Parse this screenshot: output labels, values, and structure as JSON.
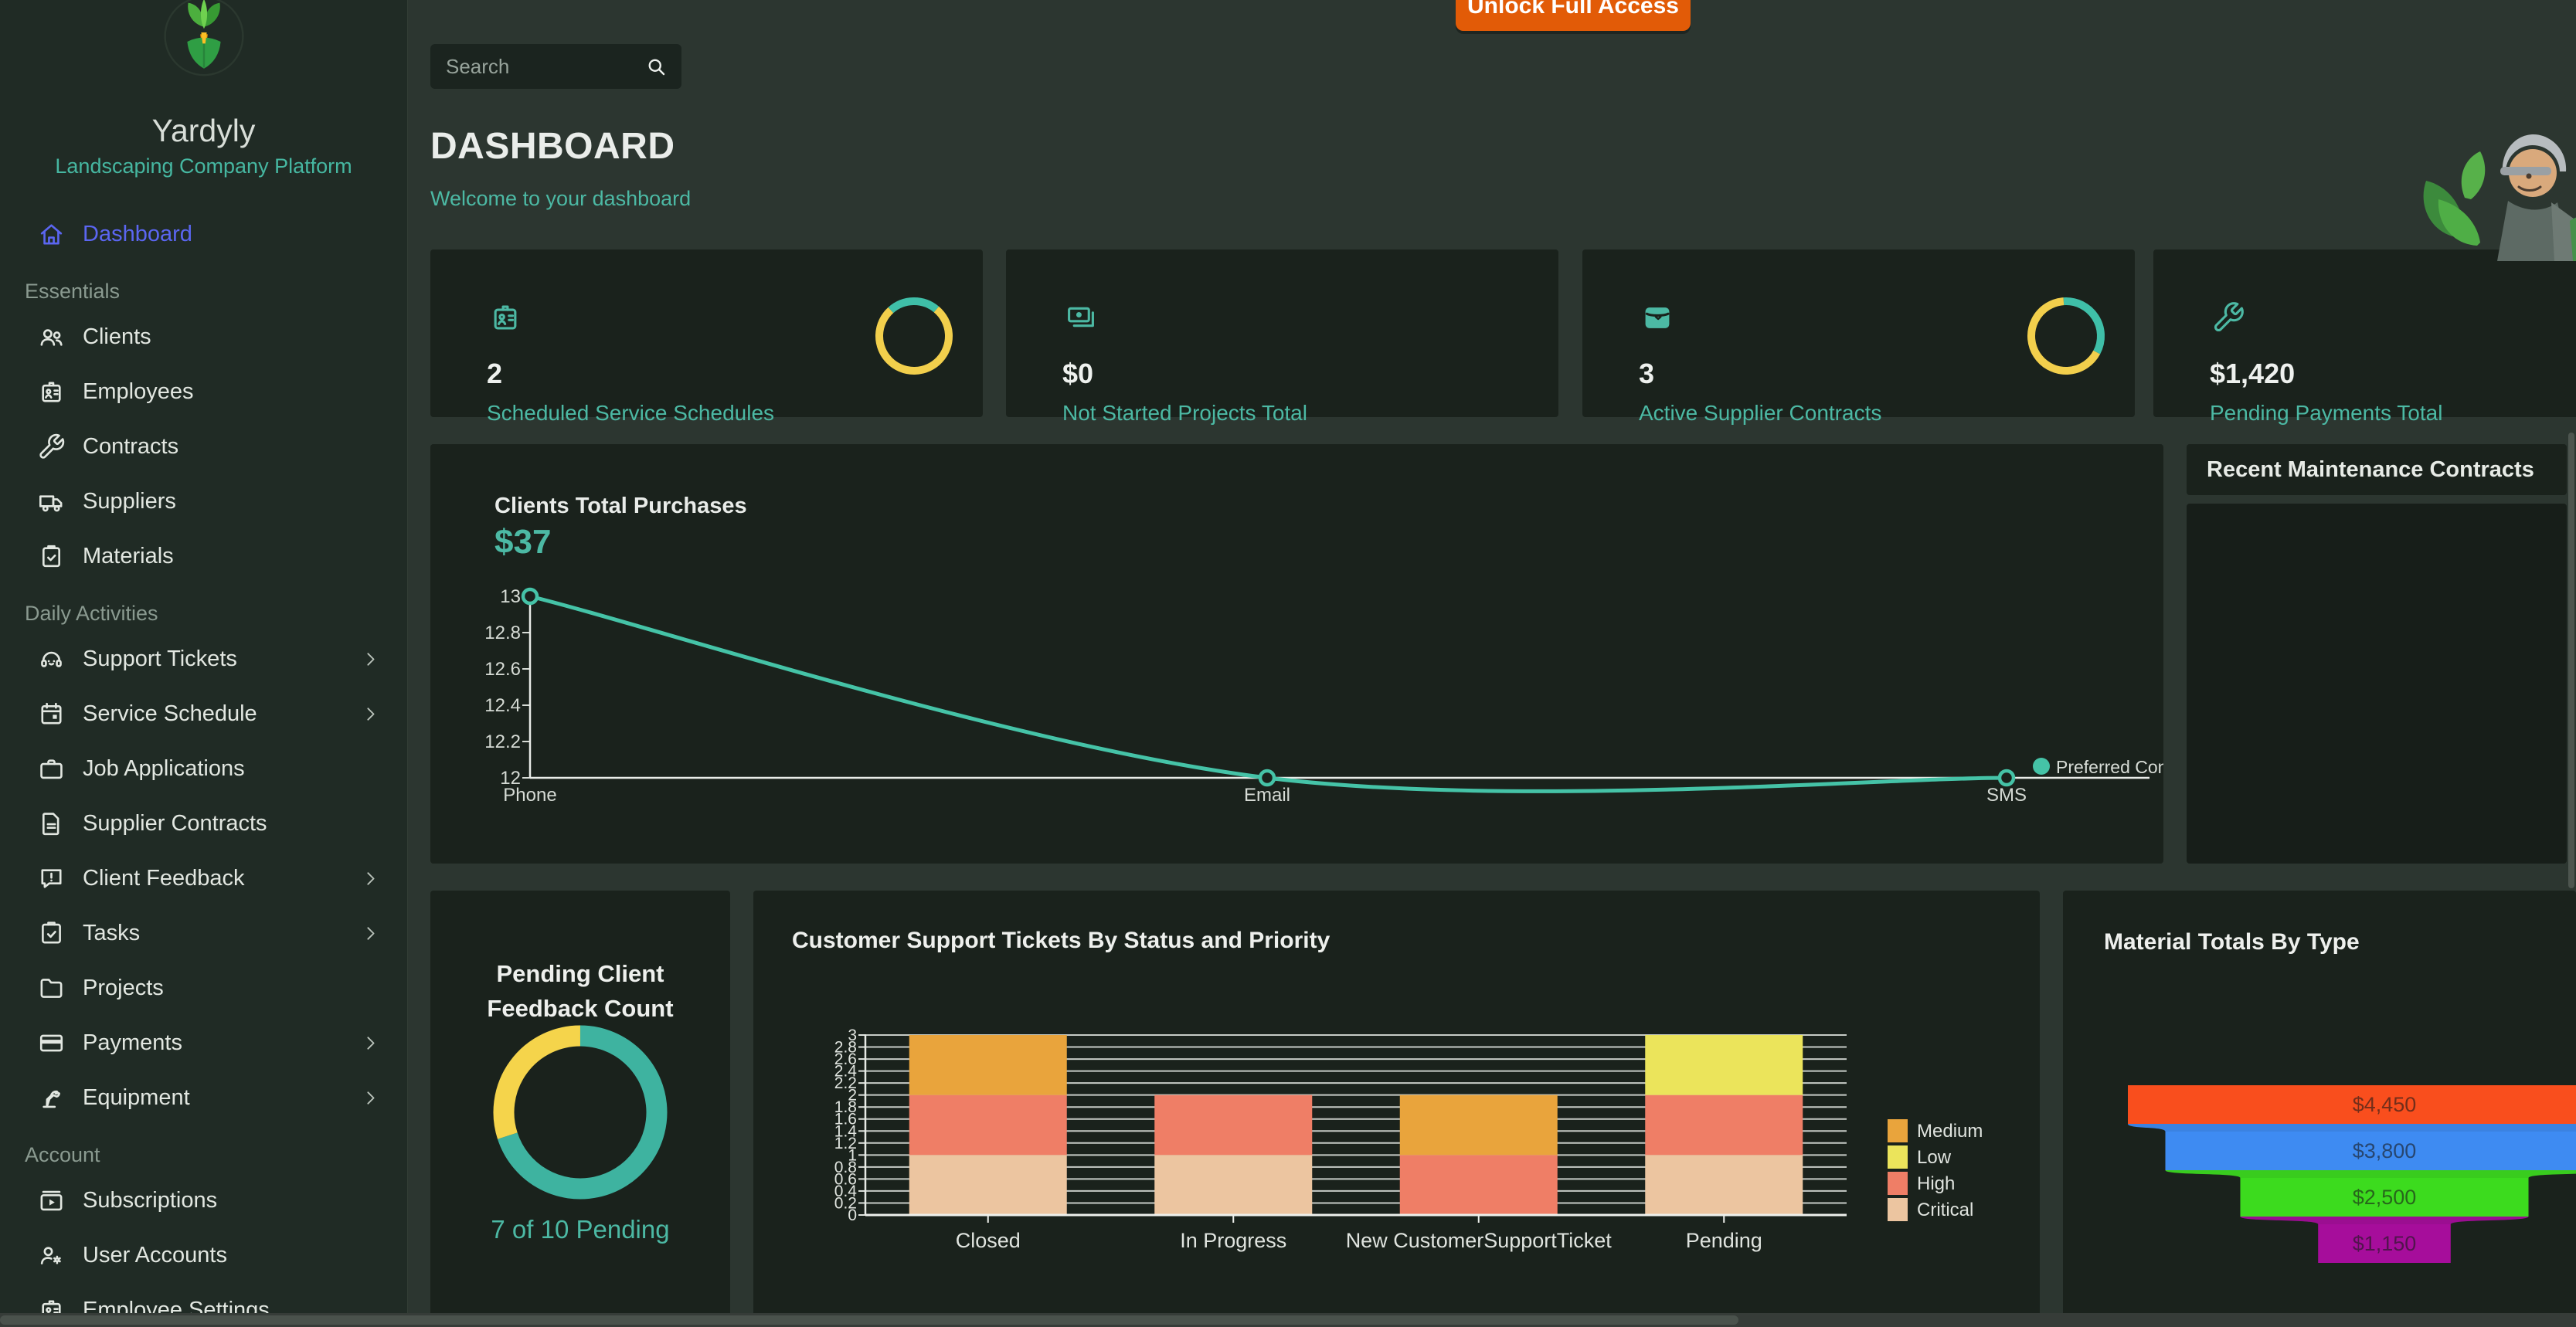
{
  "theme": {
    "accent_teal": "#4cb9a4",
    "accent_indigo": "#5b66f1",
    "button_orange": "#e25b07",
    "ring_yellow": "#f2cf4c",
    "ring_teal": "#3fbfa8",
    "panel_bg": "#1a221c",
    "sidebar_bg": "#202b25"
  },
  "sidebar": {
    "app_name": "Yardyly",
    "app_subtitle": "Landscaping Company Platform",
    "nav_top": [
      {
        "label": "Dashboard",
        "icon": "home",
        "active": true
      }
    ],
    "sections": [
      {
        "label": "Essentials",
        "items": [
          {
            "label": "Clients",
            "icon": "users"
          },
          {
            "label": "Employees",
            "icon": "id-badge"
          },
          {
            "label": "Contracts",
            "icon": "wrench"
          },
          {
            "label": "Suppliers",
            "icon": "truck"
          },
          {
            "label": "Materials",
            "icon": "clipboard-check"
          }
        ]
      },
      {
        "label": "Daily Activities",
        "items": [
          {
            "label": "Support Tickets",
            "icon": "headset",
            "chevron": true
          },
          {
            "label": "Service Schedule",
            "icon": "calendar",
            "chevron": true
          },
          {
            "label": "Job Applications",
            "icon": "briefcase"
          },
          {
            "label": "Supplier Contracts",
            "icon": "document"
          },
          {
            "label": "Client Feedback",
            "icon": "chat-alert",
            "chevron": true
          },
          {
            "label": "Tasks",
            "icon": "task-check",
            "chevron": true
          },
          {
            "label": "Projects",
            "icon": "folder"
          },
          {
            "label": "Payments",
            "icon": "credit-card",
            "chevron": true
          },
          {
            "label": "Equipment",
            "icon": "robot-arm",
            "chevron": true
          }
        ]
      },
      {
        "label": "Account",
        "items": [
          {
            "label": "Subscriptions",
            "icon": "subscriptions"
          },
          {
            "label": "User Accounts",
            "icon": "user-gear"
          },
          {
            "label": "Employee Settings",
            "icon": "id-badge",
            "partial": true
          }
        ]
      }
    ]
  },
  "topbar": {
    "search_placeholder": "Search",
    "unlock_button": "Unlock Full Access"
  },
  "header": {
    "title": "DASHBOARD",
    "subtitle": "Welcome to your dashboard"
  },
  "stat_cards": [
    {
      "icon": "id-badge",
      "value": "2",
      "label": "Scheduled Service Schedules",
      "ring": {
        "segments": [
          [
            "#3fbfa8",
            -42,
            40
          ],
          [
            "#f2cf4c",
            40,
            318
          ]
        ]
      }
    },
    {
      "icon": "banknotes",
      "value": "$0",
      "label": "Not Started Projects Total"
    },
    {
      "icon": "wallet",
      "value": "3",
      "label": "Active Supplier Contracts",
      "ring": {
        "segments": [
          [
            "#3fbfa8",
            -4,
            118
          ],
          [
            "#f2cf4c",
            118,
            356
          ]
        ]
      }
    },
    {
      "icon": "wrench",
      "value": "$1,420",
      "label": "Pending Payments Total"
    }
  ],
  "panels": {
    "purchases": {
      "title": "Clients Total Purchases",
      "total": "$37"
    },
    "recent_contracts": {
      "title": "Recent Maintenance Contracts"
    },
    "feedback": {
      "title_line1": "Pending Client",
      "title_line2": "Feedback Count",
      "caption": "7 of 10 Pending"
    },
    "tickets": {
      "title": "Customer Support Tickets By Status and Priority"
    },
    "materials": {
      "title": "Material Totals By Type"
    }
  },
  "chart_data": [
    {
      "type": "line",
      "title": "Clients Total Purchases",
      "total_label": "$37",
      "x": [
        "Phone",
        "Email",
        "SMS"
      ],
      "series": [
        {
          "name": "Preferred Cont",
          "color": "#45c3a7",
          "values": [
            13,
            12,
            12
          ]
        }
      ],
      "ylim": [
        12,
        13
      ],
      "yticks": [
        12,
        12.2,
        12.4,
        12.6,
        12.8,
        13
      ],
      "grid": false,
      "legend_position": "right"
    },
    {
      "type": "pie",
      "subtype": "donut",
      "title": "Pending Client Feedback Count",
      "pending": 7,
      "total": 10,
      "caption": "7 of 10 Pending",
      "colors": {
        "pending": "#3eb3a0",
        "remainder": "#f5d44b"
      }
    },
    {
      "type": "bar",
      "stacked": true,
      "title": "Customer Support Tickets By Status and Priority",
      "categories": [
        "Closed",
        "In Progress",
        "New CustomerSupportTicket",
        "Pending"
      ],
      "series": [
        {
          "name": "Critical",
          "color": "#ecc5a0",
          "values": [
            1,
            1,
            0,
            1
          ]
        },
        {
          "name": "High",
          "color": "#ef7e66",
          "values": [
            1,
            1,
            1,
            1
          ]
        },
        {
          "name": "Medium",
          "color": "#e9a43c",
          "values": [
            1,
            0,
            1,
            0
          ]
        },
        {
          "name": "Low",
          "color": "#ebe45b",
          "values": [
            0,
            0,
            0,
            1
          ]
        }
      ],
      "legend_order": [
        "Medium",
        "Low",
        "High",
        "Critical"
      ],
      "ylim": [
        0,
        3
      ],
      "ytick_step": 0.2,
      "grid": true,
      "legend_position": "right"
    },
    {
      "type": "funnel",
      "title": "Material Totals By Type",
      "stages": [
        {
          "label": "$4,450",
          "value": 4450,
          "color": "#f94e1d"
        },
        {
          "label": "$3,800",
          "value": 3800,
          "color": "#3e8bf2"
        },
        {
          "label": "$2,500",
          "value": 2500,
          "color": "#3cdb1e"
        },
        {
          "label": "$1,150",
          "value": 1150,
          "color": "#a60d9b"
        }
      ]
    }
  ]
}
